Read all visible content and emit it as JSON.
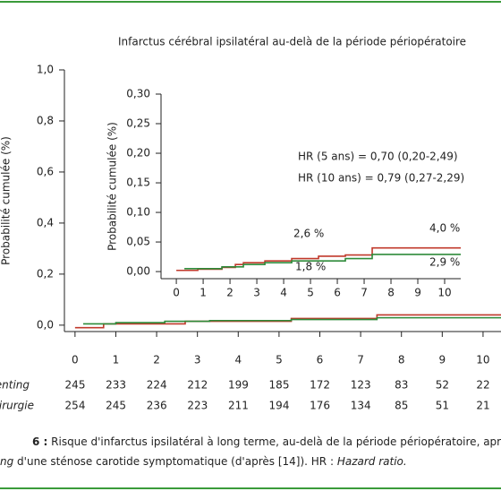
{
  "title": "Infarctus cérébral ipsilatéral au-delà de la période périopératoire",
  "chart_data": [
    {
      "type": "line",
      "step": "post",
      "ylabel": "Probabilité cumulée (%)",
      "xlim": [
        -0.26,
        10.44
      ],
      "ylim": [
        -0.025,
        1
      ],
      "xticks": [
        0,
        1,
        2,
        3,
        4,
        5,
        6,
        7,
        8,
        9,
        10
      ],
      "yticks": [
        {
          "value": 0,
          "label": "0,0"
        },
        {
          "value": 0.2,
          "label": "0,2"
        },
        {
          "value": 0.4,
          "label": "0,4"
        },
        {
          "value": 0.6,
          "label": "0,6"
        },
        {
          "value": 0.8,
          "label": "0,8"
        },
        {
          "value": 1,
          "label": "1,0"
        }
      ],
      "series": [
        {
          "color": "#c0392b",
          "x": [
            0,
            0.7,
            2.7,
            5.3,
            7.4,
            10.44
          ],
          "values": [
            -0.01,
            0.005,
            0.015,
            0.026,
            0.04,
            0.04
          ]
        },
        {
          "color": "#2e8b3a",
          "x": [
            0.2,
            1.0,
            2.2,
            3.3,
            5.3,
            7.4,
            10.44
          ],
          "values": [
            0.005,
            0.01,
            0.015,
            0.018,
            0.022,
            0.029,
            0.029
          ]
        }
      ]
    },
    {
      "type": "line",
      "step": "post",
      "ylabel": "Probabilité cumulée (%)",
      "xlim": [
        -0.57,
        10.6
      ],
      "ylim": [
        -0.012,
        0.3
      ],
      "xticks": [
        0,
        1,
        2,
        3,
        4,
        5,
        6,
        7,
        8,
        9,
        10
      ],
      "yticks": [
        {
          "value": 0,
          "label": "0,00"
        },
        {
          "value": 0.05,
          "label": "0,05"
        },
        {
          "value": 0.1,
          "label": "0,10"
        },
        {
          "value": 0.15,
          "label": "0,15"
        },
        {
          "value": 0.2,
          "label": "0,20"
        },
        {
          "value": 0.25,
          "label": "0,25"
        },
        {
          "value": 0.3,
          "label": "0,30"
        }
      ],
      "annotations": [
        "HR (5 ans) = 0,70 (0,20-2,49)",
        "HR (10 ans) = 0,79 (0,27-2,29)",
        "2,6 %",
        "4,0 %",
        "1,8 %",
        "2,9 %"
      ],
      "series": [
        {
          "color": "#c0392b",
          "x": [
            0,
            0.8,
            1.7,
            2.2,
            2.5,
            3.3,
            4.3,
            5.3,
            6.3,
            7.3,
            10.6
          ],
          "values": [
            0.002,
            0.004,
            0.007,
            0.012,
            0.015,
            0.018,
            0.022,
            0.026,
            0.028,
            0.04,
            0.04
          ]
        },
        {
          "color": "#2e8b3a",
          "x": [
            0.3,
            1.7,
            2.5,
            3.3,
            4.3,
            6.3,
            7.3,
            10.6
          ],
          "values": [
            0.005,
            0.008,
            0.012,
            0.015,
            0.018,
            0.022,
            0.029,
            0.029
          ]
        }
      ]
    }
  ],
  "risk_table": {
    "rows": [
      {
        "label": "enting",
        "values": [
          245,
          233,
          224,
          212,
          199,
          185,
          172,
          123,
          83,
          52,
          22
        ]
      },
      {
        "label": "hirurgie",
        "values": [
          254,
          245,
          236,
          223,
          211,
          194,
          176,
          134,
          85,
          51,
          21
        ]
      }
    ]
  },
  "caption": {
    "number": "6 :",
    "line1": " Risque d'infarctus ipsilatéral à long terme, au-delà de la période périopératoire, après chirurg",
    "line2_start": "ng",
    "line2_mid": " d'une sténose carotide symptomatique (d'après [14]). HR : ",
    "line2_end": "Hazard ratio."
  }
}
